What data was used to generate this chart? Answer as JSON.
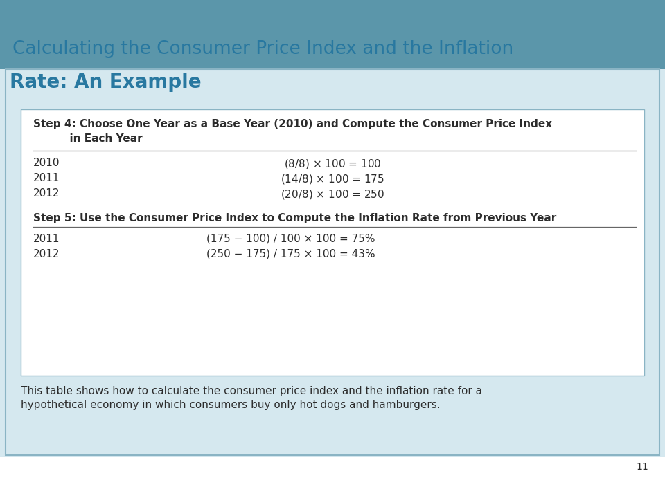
{
  "title_line1": "Calculating the Consumer Price Index and the Inflation",
  "title_line2": "Rate: An Example",
  "title_color": "#2878A0",
  "header_bg_color": "#5B96AA",
  "content_bg_color": "#D5E8EF",
  "white_box_bg": "#FFFFFF",
  "step4_line1": "Step 4: Choose One Year as a Base Year (2010) and Compute the Consumer Price Index",
  "step4_line2": "          in Each Year",
  "cpi_rows": [
    {
      "year": "2010",
      "formula": "($8 / $8) × 100 = 100"
    },
    {
      "year": "2011",
      "formula": "($14 / $8) × 100 = 175"
    },
    {
      "year": "2012",
      "formula": "($20 / $8) × 100 = 250"
    }
  ],
  "step5_line1": "Step 5: Use the Consumer Price Index to Compute the Inflation Rate from Previous Year",
  "inflation_rows": [
    {
      "year": "2011",
      "formula": "(175 − 100) / 100 × 100 = 75%"
    },
    {
      "year": "2012",
      "formula": "(250 − 175) / 175 × 100 = 43%"
    }
  ],
  "caption_line1": "This table shows how to calculate the consumer price index and the inflation rate for a",
  "caption_line2": "hypothetical economy in which consumers buy only hot dogs and hamburgers.",
  "page_number": "11",
  "text_dark": "#2C2C2C",
  "line_color": "#8AB4C4",
  "divider_color": "#666666",
  "bottom_bg": "#FFFFFF"
}
